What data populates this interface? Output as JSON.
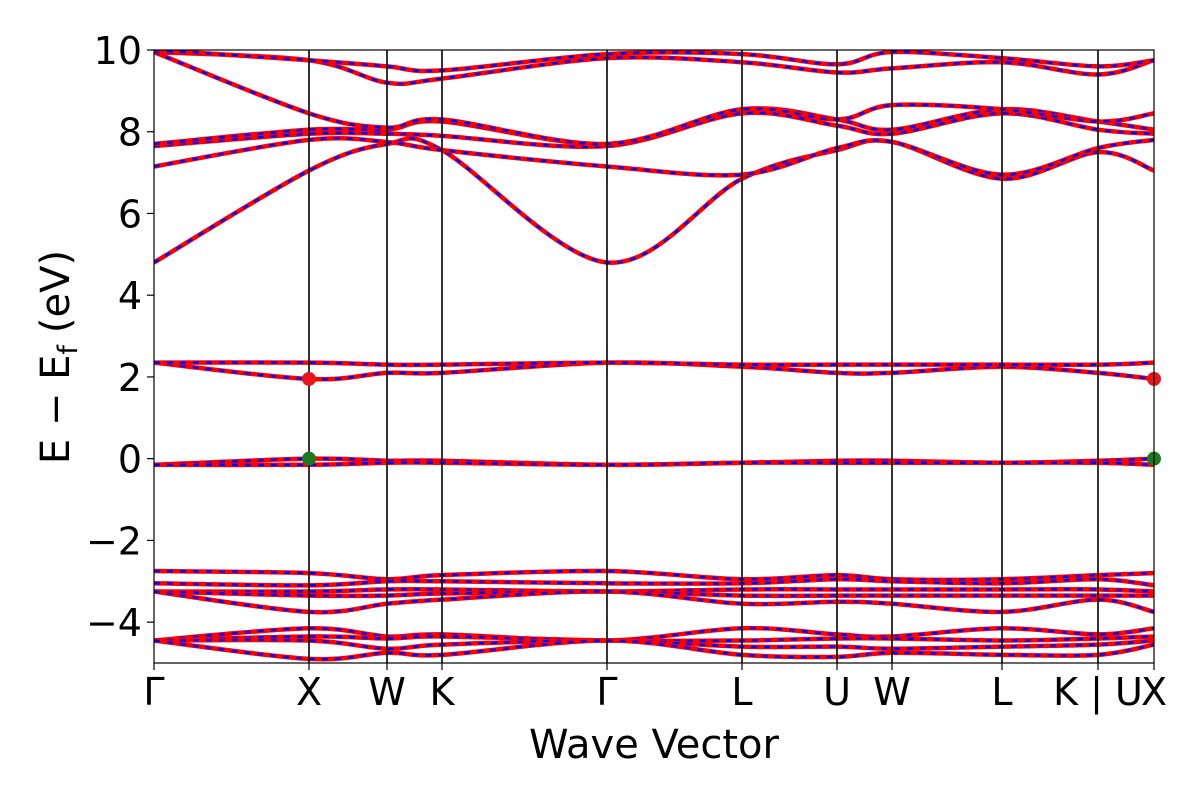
{
  "chart_data": {
    "type": "line",
    "title": "",
    "xlabel": "Wave Vector",
    "ylabel_main": "E − E",
    "ylabel_sub": "f",
    "ylabel_unit": "(eV)",
    "ylim": [
      -5,
      10
    ],
    "yticks": [
      -4,
      -2,
      0,
      2,
      4,
      6,
      8,
      10
    ],
    "ytick_labels": [
      "−4",
      "−2",
      "0",
      "2",
      "4",
      "6",
      "8",
      "10"
    ],
    "x_range": [
      0,
      1
    ],
    "high_symmetry_points": [
      {
        "label": "Γ",
        "x": 0.0
      },
      {
        "label": "X",
        "x": 0.155
      },
      {
        "label": "W",
        "x": 0.233
      },
      {
        "label": "K",
        "x": 0.288
      },
      {
        "label": "Γ",
        "x": 0.453
      },
      {
        "label": "L",
        "x": 0.588
      },
      {
        "label": "U",
        "x": 0.683
      },
      {
        "label": "W",
        "x": 0.738
      },
      {
        "label": "L",
        "x": 0.848
      },
      {
        "label": "K | U",
        "x": 0.944
      },
      {
        "label": "X",
        "x": 1.0
      }
    ],
    "band_colors": {
      "spin_up": "#ff0000",
      "spin_down": "#0000ff"
    },
    "series": [
      {
        "y": [
          4.8,
          7.05,
          7.7,
          7.55,
          4.8,
          6.85,
          7.55,
          7.75,
          6.85,
          7.5,
          7.05
        ]
      },
      {
        "y": [
          7.15,
          7.8,
          7.75,
          7.55,
          7.15,
          6.95,
          7.6,
          7.75,
          6.95,
          7.6,
          7.8
        ]
      },
      {
        "y": [
          7.65,
          7.95,
          7.95,
          7.9,
          7.65,
          8.45,
          8.15,
          7.95,
          8.45,
          8.05,
          7.95
        ]
      },
      {
        "y": [
          7.7,
          8.05,
          8.05,
          8.25,
          7.7,
          8.55,
          8.3,
          8.05,
          8.55,
          8.25,
          8.05
        ]
      },
      {
        "y": [
          9.95,
          8.45,
          8.1,
          8.3,
          7.7,
          8.55,
          8.3,
          8.65,
          8.55,
          8.25,
          8.45
        ]
      },
      {
        "y": [
          9.95,
          9.75,
          9.2,
          9.3,
          9.8,
          9.7,
          9.45,
          9.55,
          9.7,
          9.4,
          9.75
        ]
      },
      {
        "y": [
          10.0,
          9.75,
          9.6,
          9.5,
          9.9,
          9.9,
          9.65,
          9.95,
          9.8,
          9.6,
          9.75
        ]
      },
      {
        "y": [
          2.35,
          1.95,
          2.1,
          2.1,
          2.35,
          2.25,
          2.1,
          2.1,
          2.25,
          2.1,
          1.95
        ]
      },
      {
        "y": [
          2.35,
          2.35,
          2.3,
          2.3,
          2.35,
          2.3,
          2.3,
          2.3,
          2.3,
          2.3,
          2.35
        ]
      },
      {
        "y": [
          -0.15,
          0.0,
          -0.05,
          -0.05,
          -0.15,
          -0.1,
          -0.05,
          -0.05,
          -0.1,
          -0.05,
          0.0
        ]
      },
      {
        "y": [
          -0.15,
          -0.15,
          -0.1,
          -0.1,
          -0.15,
          -0.1,
          -0.1,
          -0.1,
          -0.1,
          -0.1,
          -0.15
        ]
      },
      {
        "y": [
          -2.75,
          -2.8,
          -2.95,
          -2.85,
          -2.75,
          -2.95,
          -2.85,
          -2.95,
          -2.95,
          -2.85,
          -2.8
        ]
      },
      {
        "y": [
          -3.05,
          -3.1,
          -3.0,
          -3.0,
          -3.05,
          -3.05,
          -2.95,
          -3.0,
          -3.05,
          -2.95,
          -3.1
        ]
      },
      {
        "y": [
          -3.25,
          -3.25,
          -3.2,
          -3.2,
          -3.25,
          -3.2,
          -3.2,
          -3.2,
          -3.2,
          -3.2,
          -3.25
        ]
      },
      {
        "y": [
          -3.25,
          -3.35,
          -3.35,
          -3.3,
          -3.25,
          -3.35,
          -3.35,
          -3.35,
          -3.35,
          -3.35,
          -3.35
        ]
      },
      {
        "y": [
          -3.25,
          -3.75,
          -3.55,
          -3.45,
          -3.25,
          -3.55,
          -3.5,
          -3.55,
          -3.75,
          -3.45,
          -3.75
        ]
      },
      {
        "y": [
          -4.45,
          -4.15,
          -4.35,
          -4.3,
          -4.45,
          -4.15,
          -4.3,
          -4.35,
          -4.15,
          -4.3,
          -4.15
        ]
      },
      {
        "y": [
          -4.45,
          -4.35,
          -4.4,
          -4.35,
          -4.45,
          -4.45,
          -4.4,
          -4.4,
          -4.45,
          -4.4,
          -4.35
        ]
      },
      {
        "y": [
          -4.45,
          -4.45,
          -4.65,
          -4.55,
          -4.45,
          -4.6,
          -4.6,
          -4.65,
          -4.6,
          -4.55,
          -4.45
        ]
      },
      {
        "y": [
          -4.45,
          -4.9,
          -4.75,
          -4.8,
          -4.45,
          -4.8,
          -4.85,
          -4.75,
          -4.8,
          -4.8,
          -4.55
        ]
      }
    ],
    "markers": [
      {
        "label": "cbm",
        "x": 0.155,
        "y": 1.95,
        "color": "#e8161b"
      },
      {
        "label": "cbm",
        "x": 1.0,
        "y": 1.95,
        "color": "#e8161b"
      },
      {
        "label": "vbm",
        "x": 0.155,
        "y": 0.0,
        "color": "#1d7a1d"
      },
      {
        "label": "vbm",
        "x": 1.0,
        "y": 0.0,
        "color": "#1d7a1d"
      }
    ]
  }
}
